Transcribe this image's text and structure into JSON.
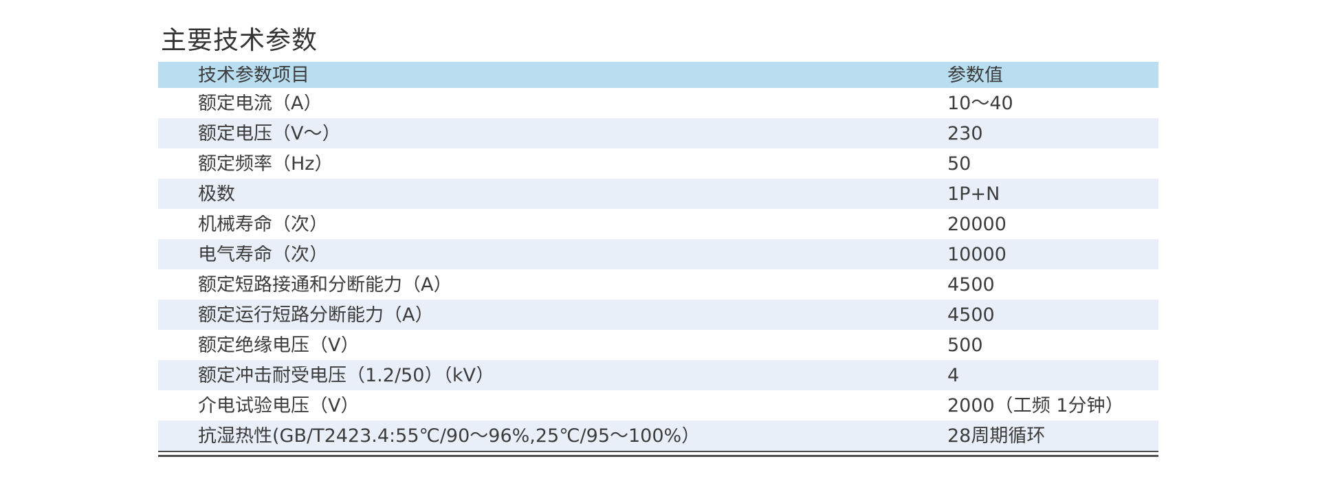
{
  "page": {
    "title": "主要技术参数"
  },
  "theme": {
    "header-bg": "#b9def0",
    "stripe-bg": "#e8eff8",
    "text": "#3c3c3c",
    "title": "#333333",
    "line": "#4d4d4d",
    "page-bg": "#ffffff"
  },
  "table": {
    "headers": {
      "item": "技术参数项目",
      "value": "参数值"
    },
    "rows": [
      {
        "item": "额定电流（A）",
        "value": "10～40"
      },
      {
        "item": "额定电压（V～）",
        "value": "230"
      },
      {
        "item": "额定频率（Hz）",
        "value": "50"
      },
      {
        "item": "极数",
        "value": "1P+N"
      },
      {
        "item": "机械寿命（次）",
        "value": "20000"
      },
      {
        "item": "电气寿命（次）",
        "value": "10000"
      },
      {
        "item": "额定短路接通和分断能力（A）",
        "value": "4500"
      },
      {
        "item": "额定运行短路分断能力（A）",
        "value": "4500"
      },
      {
        "item": "额定绝缘电压（V）",
        "value": "500"
      },
      {
        "item": "额定冲击耐受电压（1.2/50）（kV）",
        "value": "4"
      },
      {
        "item": "介电试验电压（V）",
        "value": "2000（工频 1分钟）"
      },
      {
        "item": "抗湿热性(GB/T2423.4:55℃/90～96%,25℃/95～100%）",
        "value": "28周期循环"
      }
    ]
  }
}
